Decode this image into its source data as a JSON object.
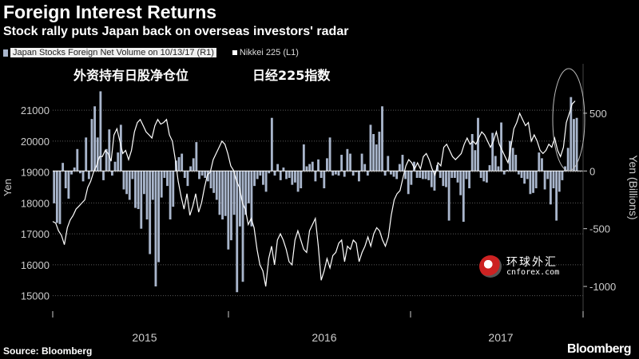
{
  "header": {
    "title": "Foreign Interest Returns",
    "subtitle": "Stock rally puts Japan back on overseas investors' radar"
  },
  "legend": {
    "bar_label": "Japan Stocks Foreign Net Volume on 10/13/17 (R1)",
    "line_label": "Nikkei 225 (L1)"
  },
  "footer": {
    "source": "Source: Bloomberg",
    "brand": "Bloomberg"
  },
  "watermark": {
    "chinese": "环球外汇",
    "url": "cnforex.com"
  },
  "colors": {
    "background": "#000000",
    "bars": "#a9b6cc",
    "line": "#ffffff",
    "grid": "#5a5a5a",
    "axis_text": "#cccccc"
  },
  "chart_data": {
    "type": "line",
    "annotations": [
      "外资持有日股净仓位",
      "日经225指数"
    ],
    "x_tick_labels": [
      "2015",
      "2016",
      "2017"
    ],
    "left_axis": {
      "label": "Yen",
      "range": [
        14500,
        22500
      ],
      "ticks": [
        15000,
        16000,
        17000,
        18000,
        19000,
        20000,
        21000
      ]
    },
    "right_axis": {
      "label": "Yen (Billions)",
      "range": [
        -1214,
        928
      ],
      "ticks": [
        -1000,
        -500,
        0,
        500
      ]
    },
    "grid": true,
    "series": [
      {
        "name": "Japan Stocks Foreign Net Volume on 10/13/17",
        "type": "bar",
        "axis": "right",
        "values": [
          -280,
          -450,
          -460,
          70,
          -150,
          -240,
          -30,
          30,
          190,
          -20,
          -90,
          290,
          -70,
          450,
          560,
          290,
          690,
          -80,
          190,
          360,
          -40,
          80,
          160,
          400,
          -160,
          -200,
          -250,
          -70,
          -320,
          -330,
          -500,
          -200,
          -420,
          -720,
          -250,
          -1000,
          -790,
          -230,
          -60,
          -130,
          -420,
          -310,
          90,
          120,
          150,
          -60,
          -130,
          40,
          110,
          250,
          -70,
          -40,
          -60,
          -90,
          -150,
          -190,
          -250,
          -380,
          -420,
          -390,
          -680,
          -600,
          -380,
          -1050,
          -480,
          -960,
          -380,
          -280,
          -480,
          -130,
          -70,
          -40,
          -120,
          -180,
          -20,
          460,
          -40,
          60,
          -80,
          30,
          -70,
          -60,
          -120,
          -100,
          -180,
          -150,
          230,
          40,
          60,
          80,
          -90,
          100,
          -60,
          -150,
          110,
          290,
          -40,
          -30,
          -40,
          140,
          -50,
          190,
          150,
          -40,
          -10,
          -90,
          150,
          60,
          -40,
          400,
          320,
          230,
          340,
          560,
          -40,
          130,
          -30,
          -50,
          -70,
          60,
          140,
          -70,
          -200,
          -120,
          80,
          -60,
          -60,
          -70,
          -70,
          -80,
          -140,
          -170,
          50,
          -60,
          -130,
          -140,
          -430,
          -60,
          -60,
          -100,
          -210,
          -440,
          -70,
          -150,
          320,
          180,
          460,
          -60,
          -90,
          -100,
          50,
          330,
          130,
          40,
          420,
          -30,
          10,
          260,
          200,
          140,
          -30,
          -60,
          -110,
          -70,
          -200,
          -190,
          -150,
          160,
          110,
          -160,
          -70,
          -290,
          -150,
          -430,
          -180,
          -80,
          40,
          200,
          640,
          450,
          460
        ]
      },
      {
        "name": "Nikkei 225",
        "type": "line",
        "axis": "left",
        "values": [
          17400,
          17350,
          17100,
          16950,
          16650,
          17200,
          17450,
          17600,
          17800,
          17900,
          18000,
          18100,
          18500,
          18700,
          19000,
          19200,
          19500,
          19500,
          19700,
          19600,
          19350,
          20200,
          20400,
          20000,
          19600,
          19700,
          19400,
          19700,
          20300,
          20600,
          20700,
          20500,
          20300,
          20200,
          20100,
          20500,
          20700,
          20550,
          20600,
          20700,
          20200,
          20000,
          19400,
          18700,
          18200,
          17800,
          18300,
          17600,
          17900,
          18300,
          17700,
          18000,
          18500,
          18900,
          19000,
          19400,
          19600,
          19800,
          20000,
          19900,
          19600,
          19200,
          19050,
          18700,
          18500,
          18000,
          17800,
          17300,
          17500,
          17200,
          16500,
          16000,
          15800,
          15300,
          16200,
          16600,
          16000,
          16800,
          17000,
          16800,
          16500,
          16100,
          16000,
          16800,
          17100,
          16800,
          16500,
          16400,
          17100,
          17300,
          17500,
          16600,
          15500,
          15800,
          16200,
          15900,
          16300,
          16400,
          16700,
          16800,
          16100,
          16600,
          16500,
          16800,
          16700,
          16100,
          16400,
          16600,
          16900,
          16600,
          17000,
          17200,
          17100,
          16800,
          16600,
          16900,
          17600,
          18100,
          18300,
          18400,
          18800,
          19200,
          19400,
          19300,
          19100,
          19300,
          19100,
          19500,
          19600,
          19400,
          19100,
          18900,
          19300,
          19200,
          19800,
          19900,
          19700,
          19500,
          19400,
          19500,
          19600,
          19900,
          20100,
          19900,
          20000,
          19900,
          20100,
          20300,
          20200,
          20000,
          19800,
          20000,
          20300,
          19900,
          19700,
          19500,
          19300,
          19800,
          20400,
          20600,
          20900,
          20700,
          20500,
          20600,
          20000,
          20200,
          20000,
          19700,
          19600,
          19700,
          19900,
          19800,
          20100,
          19700,
          19500,
          19800,
          20600,
          20900,
          21200,
          21300
        ]
      }
    ]
  }
}
